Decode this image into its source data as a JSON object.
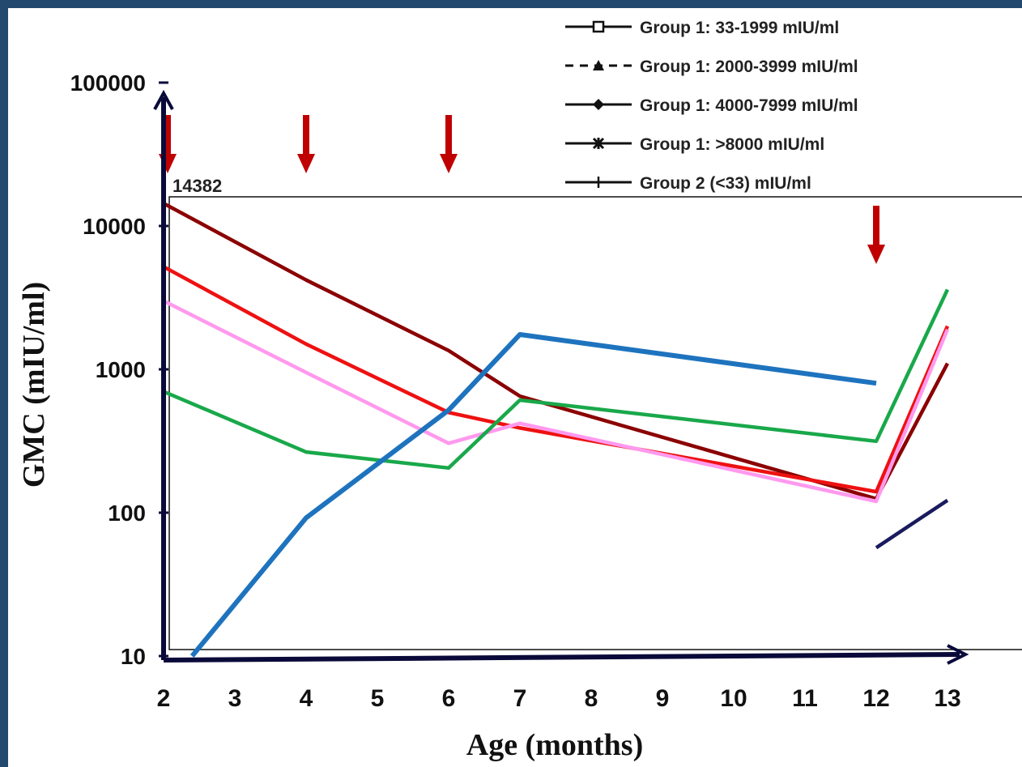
{
  "chart_data": {
    "type": "line",
    "xlabel": "Age (months)",
    "ylabel": "GMC (mIU/ml)",
    "y_scale": "log",
    "ylim": [
      10,
      100000
    ],
    "x_ticks": [
      2,
      3,
      4,
      5,
      6,
      7,
      8,
      9,
      10,
      11,
      12,
      13
    ],
    "y_ticks": [
      {
        "value": 10,
        "label": "10"
      },
      {
        "value": 100,
        "label": "100"
      },
      {
        "value": 1000,
        "label": "1000"
      },
      {
        "value": 10000,
        "label": "10000"
      },
      {
        "value": 100000,
        "label": "100000"
      }
    ],
    "legend": {
      "placement": "top-right",
      "entries": [
        {
          "label": "Group 1: 33-1999 mIU/ml",
          "marker": "square",
          "dash": "solid"
        },
        {
          "label": "Group 1: 2000-3999 mIU/ml",
          "marker": "triangle",
          "dash": "dashed"
        },
        {
          "label": "Group 1: 4000-7999 mIU/ml",
          "marker": "diamond",
          "dash": "solid"
        },
        {
          "label": "Group 1: >8000 mIU/ml",
          "marker": "asterisk",
          "dash": "solid"
        },
        {
          "label": "Group 2 (<33) mIU/ml",
          "marker": "plus",
          "dash": "solid"
        }
      ]
    },
    "annotations": [
      {
        "text": "14382",
        "x": 2,
        "y": 14382
      }
    ],
    "vaccination_arrows_at_months": [
      2,
      4,
      6,
      12
    ],
    "arrow_color": "#c00000",
    "series": [
      {
        "color": "#8b0000",
        "points": [
          [
            2,
            14382
          ],
          [
            4,
            4200
          ],
          [
            6,
            1350
          ],
          [
            7,
            650
          ],
          [
            12,
            125
          ],
          [
            13,
            1100
          ]
        ]
      },
      {
        "color": "#ee1111",
        "points": [
          [
            2,
            5200
          ],
          [
            4,
            1500
          ],
          [
            6,
            500
          ],
          [
            7,
            390
          ],
          [
            12,
            140
          ],
          [
            13,
            2000
          ]
        ]
      },
      {
        "color": "#ff99ee",
        "points": [
          [
            2,
            3000
          ],
          [
            4,
            950
          ],
          [
            6,
            305
          ],
          [
            7,
            420
          ],
          [
            12,
            120
          ],
          [
            13,
            1900
          ]
        ]
      },
      {
        "color": "#19a84a",
        "points": [
          [
            2,
            700
          ],
          [
            4,
            265
          ],
          [
            6,
            205
          ],
          [
            7,
            610
          ],
          [
            12,
            315
          ],
          [
            13,
            3600
          ]
        ]
      },
      {
        "color": "#1e73be",
        "points": [
          [
            2.4,
            10
          ],
          [
            4,
            92
          ],
          [
            6,
            520
          ],
          [
            7,
            1750
          ],
          [
            12,
            800
          ]
        ]
      },
      {
        "color": "#1a1a5e",
        "points": [
          [
            12,
            57
          ],
          [
            13,
            122
          ]
        ]
      }
    ]
  }
}
